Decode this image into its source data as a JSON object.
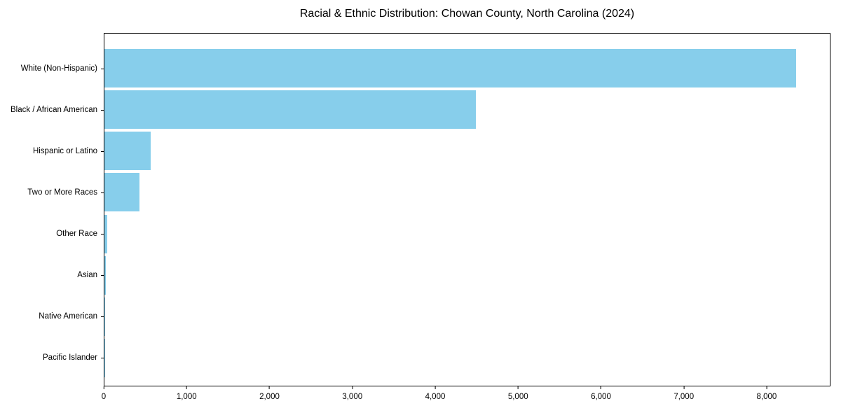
{
  "title": "Racial & Ethnic Distribution: Chowan County, North Carolina (2024)",
  "chart_data": {
    "type": "bar",
    "orientation": "horizontal",
    "title": "Racial & Ethnic Distribution: Chowan County, North Carolina (2024)",
    "categories": [
      "White (Non-Hispanic)",
      "Black / African American",
      "Hispanic or Latino",
      "Two or More Races",
      "Other Race",
      "Asian",
      "Native American",
      "Pacific Islander"
    ],
    "values": [
      8360,
      4490,
      560,
      420,
      35,
      15,
      8,
      3
    ],
    "xlabel": "",
    "ylabel": "",
    "xlim": [
      0,
      8770
    ],
    "x_ticks": [
      0,
      1000,
      2000,
      3000,
      4000,
      5000,
      6000,
      7000,
      8000
    ],
    "x_tick_labels": [
      "0",
      "1,000",
      "2,000",
      "3,000",
      "4,000",
      "5,000",
      "6,000",
      "7,000",
      "8,000"
    ],
    "bar_color": "#87CEEB",
    "spine_color": "#000000",
    "grid": false,
    "legend": "none"
  }
}
